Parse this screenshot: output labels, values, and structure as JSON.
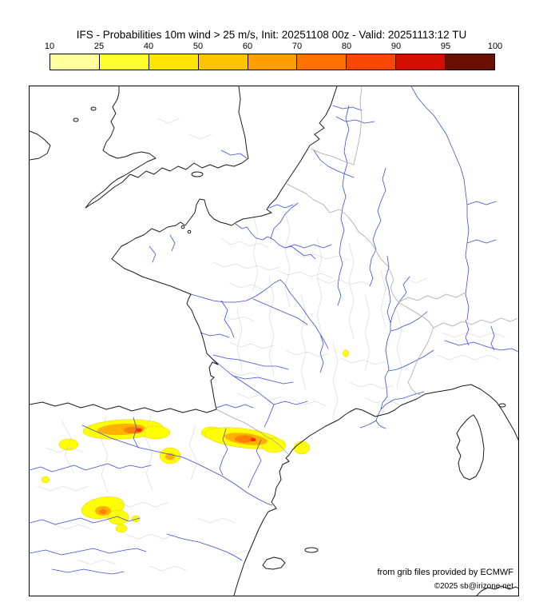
{
  "title": "IFS - Probabilities 10m wind > 25 m/s, Init: 20251108 00z - Valid: 20251113:12 TU",
  "colorbar": {
    "ticks": [
      "10",
      "25",
      "40",
      "50",
      "60",
      "70",
      "80",
      "90",
      "95",
      "100"
    ],
    "segment_colors": [
      "#ffff9e",
      "#ffff2e",
      "#ffe400",
      "#ffc400",
      "#ff9e00",
      "#ff7200",
      "#f84800",
      "#d50f00",
      "#6b0f00"
    ]
  },
  "map": {
    "attribution_line1": "from grib files provided by ECMWF",
    "attribution_line2": "©2025 sb@irizone.net"
  },
  "colors": {
    "coastline": "#1a1a1a",
    "river": "#3b4fd6",
    "admin_boundary": "#c9c9c9",
    "country_border": "#a8a8a8",
    "prob_low": "#ffff00",
    "prob_mid": "#ffb000",
    "prob_high": "#ff8000",
    "prob_extreme": "#ff2800"
  }
}
